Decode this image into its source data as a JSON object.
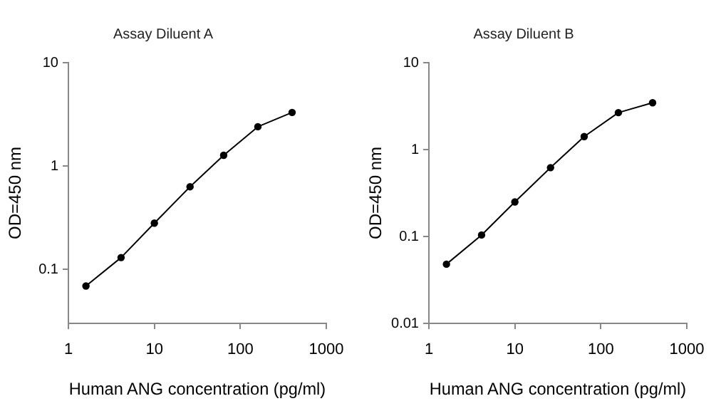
{
  "chart_data": [
    {
      "type": "line",
      "title": "Assay Diluent A",
      "xlabel": "Human ANG concentration (pg/ml)",
      "ylabel": "OD=450 nm",
      "log": "xy",
      "marker": "circle",
      "grid": false,
      "x": [
        1.6,
        4.1,
        10,
        26,
        64,
        160,
        400
      ],
      "series": [
        {
          "color": "#000000",
          "values": [
            0.069,
            0.13,
            0.28,
            0.63,
            1.27,
            2.4,
            3.3
          ]
        }
      ],
      "xlim": [
        1,
        1000
      ],
      "xticks": [
        1,
        10,
        100,
        1000
      ],
      "ylim": [
        0.03,
        10
      ],
      "yticks": [
        0.1,
        1,
        10
      ]
    },
    {
      "type": "line",
      "title": "Assay Diluent B",
      "xlabel": "Human ANG concentration (pg/ml)",
      "ylabel": "OD=450 nm",
      "log": "xy",
      "marker": "circle",
      "grid": false,
      "x": [
        1.6,
        4.1,
        10,
        26,
        64,
        160,
        400
      ],
      "series": [
        {
          "color": "#000000",
          "values": [
            0.048,
            0.104,
            0.25,
            0.62,
            1.41,
            2.66,
            3.46
          ]
        }
      ],
      "xlim": [
        1,
        1000
      ],
      "xticks": [
        1,
        10,
        100,
        1000
      ],
      "ylim": [
        0.01,
        10
      ],
      "yticks": [
        0.01,
        0.1,
        1,
        10
      ]
    }
  ]
}
